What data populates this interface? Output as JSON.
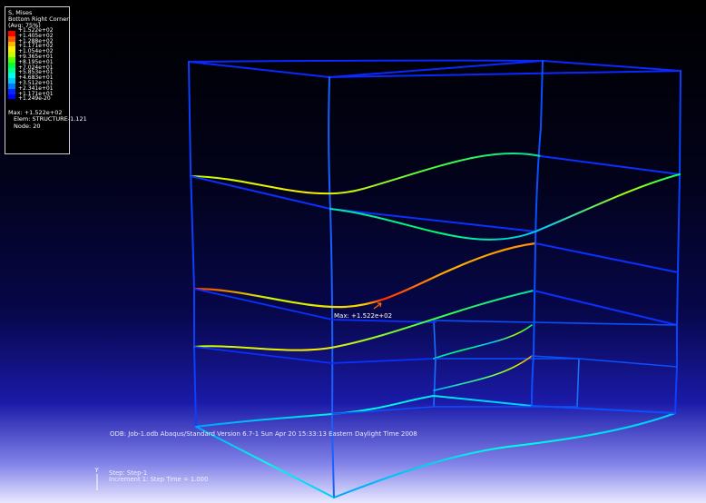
{
  "legend": {
    "title": "S, Mises",
    "subtitle": "Bottom Right Corner",
    "avg": "(Avg: 75%)",
    "bands": [
      {
        "label": "+1.522e+02",
        "color": "#ff0000"
      },
      {
        "label": "+1.405e+02",
        "color": "#ff5a00"
      },
      {
        "label": "+1.288e+02",
        "color": "#ffb400"
      },
      {
        "label": "+1.171e+02",
        "color": "#ffee00"
      },
      {
        "label": "+1.054e+02",
        "color": "#c8ff00"
      },
      {
        "label": "+9.365e+01",
        "color": "#5aff00"
      },
      {
        "label": "+8.195e+01",
        "color": "#00ff3c"
      },
      {
        "label": "+7.024e+01",
        "color": "#00ff96"
      },
      {
        "label": "+5.853e+01",
        "color": "#00ffe6"
      },
      {
        "label": "+4.683e+01",
        "color": "#00c8ff"
      },
      {
        "label": "+3.512e+01",
        "color": "#0078ff"
      },
      {
        "label": "+2.341e+01",
        "color": "#0028ff"
      },
      {
        "label": "+1.171e+01",
        "color": "#0000ff"
      },
      {
        "label": "+1.249e-20",
        "color": ""
      }
    ],
    "max_line": "Max: +1.522e+02",
    "elem_line": "Elem: STRUCTURE-1.121",
    "node_line": "Node: 20"
  },
  "max_annotation": "Max: +1.522e+02",
  "status": {
    "odb": "ODB: Job-1.odb    Abaqus/Standard Version 6.7-1    Sun Apr 20 15:33:13 Eastern Daylight Time 2008",
    "step": "Step: Step-1",
    "increment": "Increment     1: Step Time =    1.000"
  },
  "triad": {
    "y_label": "Y"
  }
}
